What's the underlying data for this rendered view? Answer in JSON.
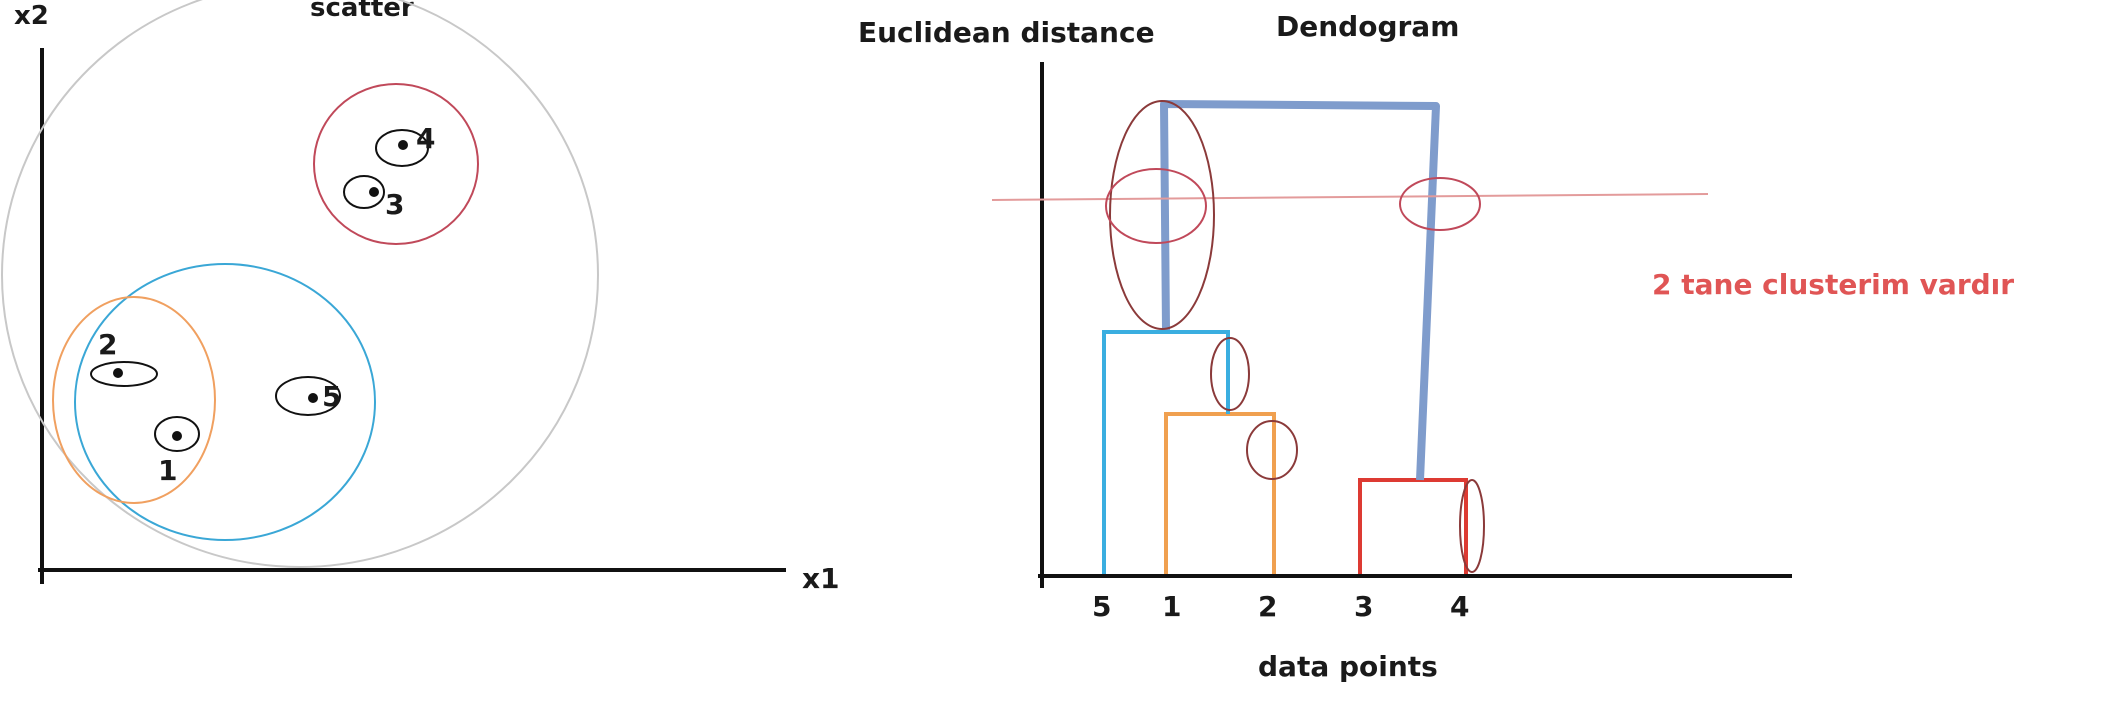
{
  "scatter": {
    "title": "scatter",
    "x_label": "x1",
    "y_label": "x2",
    "points": [
      {
        "label": "1"
      },
      {
        "label": "2"
      },
      {
        "label": "3"
      },
      {
        "label": "4"
      },
      {
        "label": "5"
      }
    ]
  },
  "dendrogram": {
    "y_label": "Euclidean distance",
    "title": "Dendogram",
    "x_label": "data points",
    "leaves": [
      "5",
      "1",
      "2",
      "3",
      "4"
    ],
    "note": "2 tane clusterim vardır"
  },
  "colors": {
    "axis": "#111111",
    "cluster_outer": "#c8c8c8",
    "cluster_3_4": "#c0495a",
    "cluster_1_2_5": "#3aa7d6",
    "cluster_1_2": "#f0a060",
    "merge_1_2": "#f0a050",
    "merge_5_12": "#3aaee0",
    "merge_3_4": "#dd3a32",
    "merge_top": "#7f9ccc",
    "cut_line": "#e39b9b",
    "markers": "#8b3a3a",
    "note": "#e05555"
  }
}
